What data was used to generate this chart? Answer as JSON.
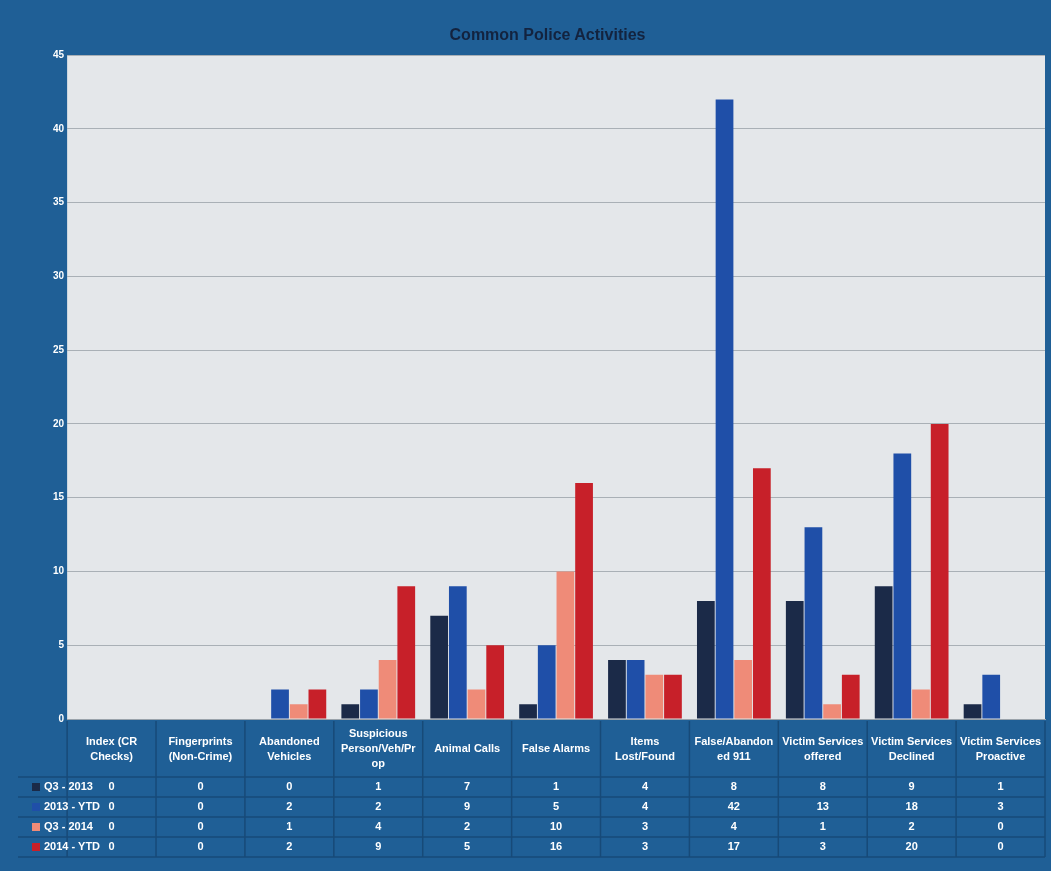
{
  "chart_data": {
    "type": "bar",
    "title": "Common Police Activities",
    "categories": [
      "Index (CR Checks)",
      "Fingerprints (Non-Crime)",
      "Abandoned Vehicles",
      "Suspicious Person/Veh/Pr op",
      "Animal Calls",
      "False Alarms",
      "Items Lost/Found",
      "False/Abandon ed 911",
      "Victim Services offered",
      "Victim Services Declined",
      "Victim Services Proactive"
    ],
    "series": [
      {
        "name": "Q3 - 2013",
        "color": "#1b2a48",
        "values": [
          0,
          0,
          0,
          1,
          7,
          1,
          4,
          8,
          8,
          9,
          1
        ]
      },
      {
        "name": "2013 - YTD",
        "color": "#1f4fa8",
        "values": [
          0,
          0,
          2,
          2,
          9,
          5,
          4,
          42,
          13,
          18,
          3
        ]
      },
      {
        "name": "Q3 - 2014",
        "color": "#ef8b78",
        "values": [
          0,
          0,
          1,
          4,
          2,
          10,
          3,
          4,
          1,
          2,
          0
        ]
      },
      {
        "name": "2014 - YTD",
        "color": "#c72029",
        "values": [
          0,
          0,
          2,
          9,
          5,
          16,
          3,
          17,
          3,
          20,
          0
        ]
      }
    ],
    "ylim": [
      0,
      45
    ],
    "yticks": [
      0,
      5,
      10,
      15,
      20,
      25,
      30,
      35,
      40,
      45
    ],
    "grid": "y",
    "legend": "bottom",
    "data_labels": true
  }
}
